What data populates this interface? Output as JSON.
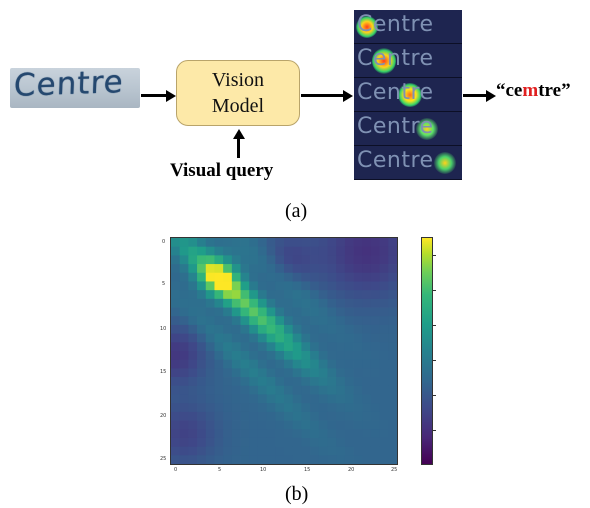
{
  "panel_a": {
    "input_word": "Centre",
    "model_box": {
      "line1": "Vision",
      "line2": "Model"
    },
    "query_label": "Visual query",
    "attention_rows": [
      "Centre",
      "Centre",
      "Centre",
      "Centre",
      "Centre"
    ],
    "output": {
      "open_quote": "“",
      "prefix": "ce",
      "error_char": "m",
      "suffix": "tre",
      "close_quote": "”"
    },
    "caption": "(a)",
    "colors": {
      "box_fill": "#fde9a8",
      "error_color": "#e02020"
    }
  },
  "panel_b": {
    "caption": "(b)",
    "y_ticks": [
      "0",
      "5",
      "10",
      "15",
      "20",
      "25"
    ],
    "x_ticks": [
      "0",
      "5",
      "10",
      "15",
      "20",
      "25"
    ],
    "colormap": "viridis"
  },
  "chart_data": {
    "type": "heatmap",
    "colormap": "viridis",
    "grid_size": 26,
    "x_ticks": [
      0,
      5,
      10,
      15,
      20,
      25
    ],
    "y_ticks": [
      0,
      5,
      10,
      15,
      20,
      25
    ],
    "xlim": [
      0,
      25
    ],
    "ylim": [
      25,
      0
    ],
    "colorbar": true,
    "description_of_values": "main bright band along diagonal offset; peak near (5,5)"
  }
}
